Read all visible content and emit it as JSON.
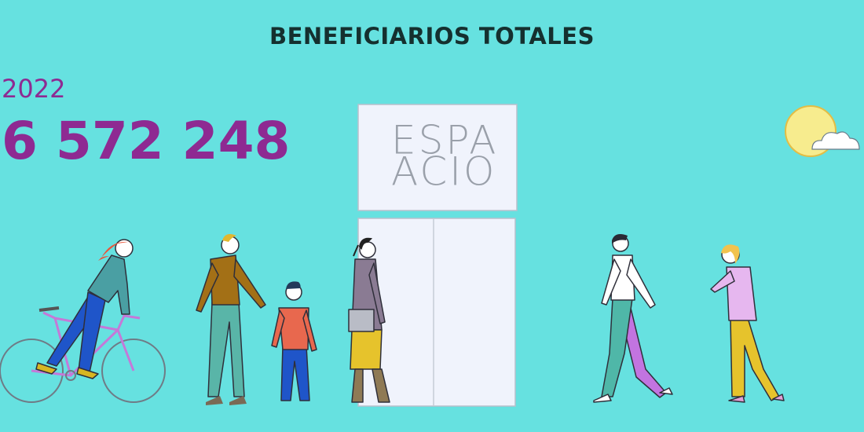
{
  "header": {
    "title": "BENEFICIARIOS TOTALES"
  },
  "stat": {
    "year": "2022",
    "total": "6 572 248"
  },
  "sign": {
    "lines": [
      "ESPA",
      "ACIO"
    ]
  }
}
